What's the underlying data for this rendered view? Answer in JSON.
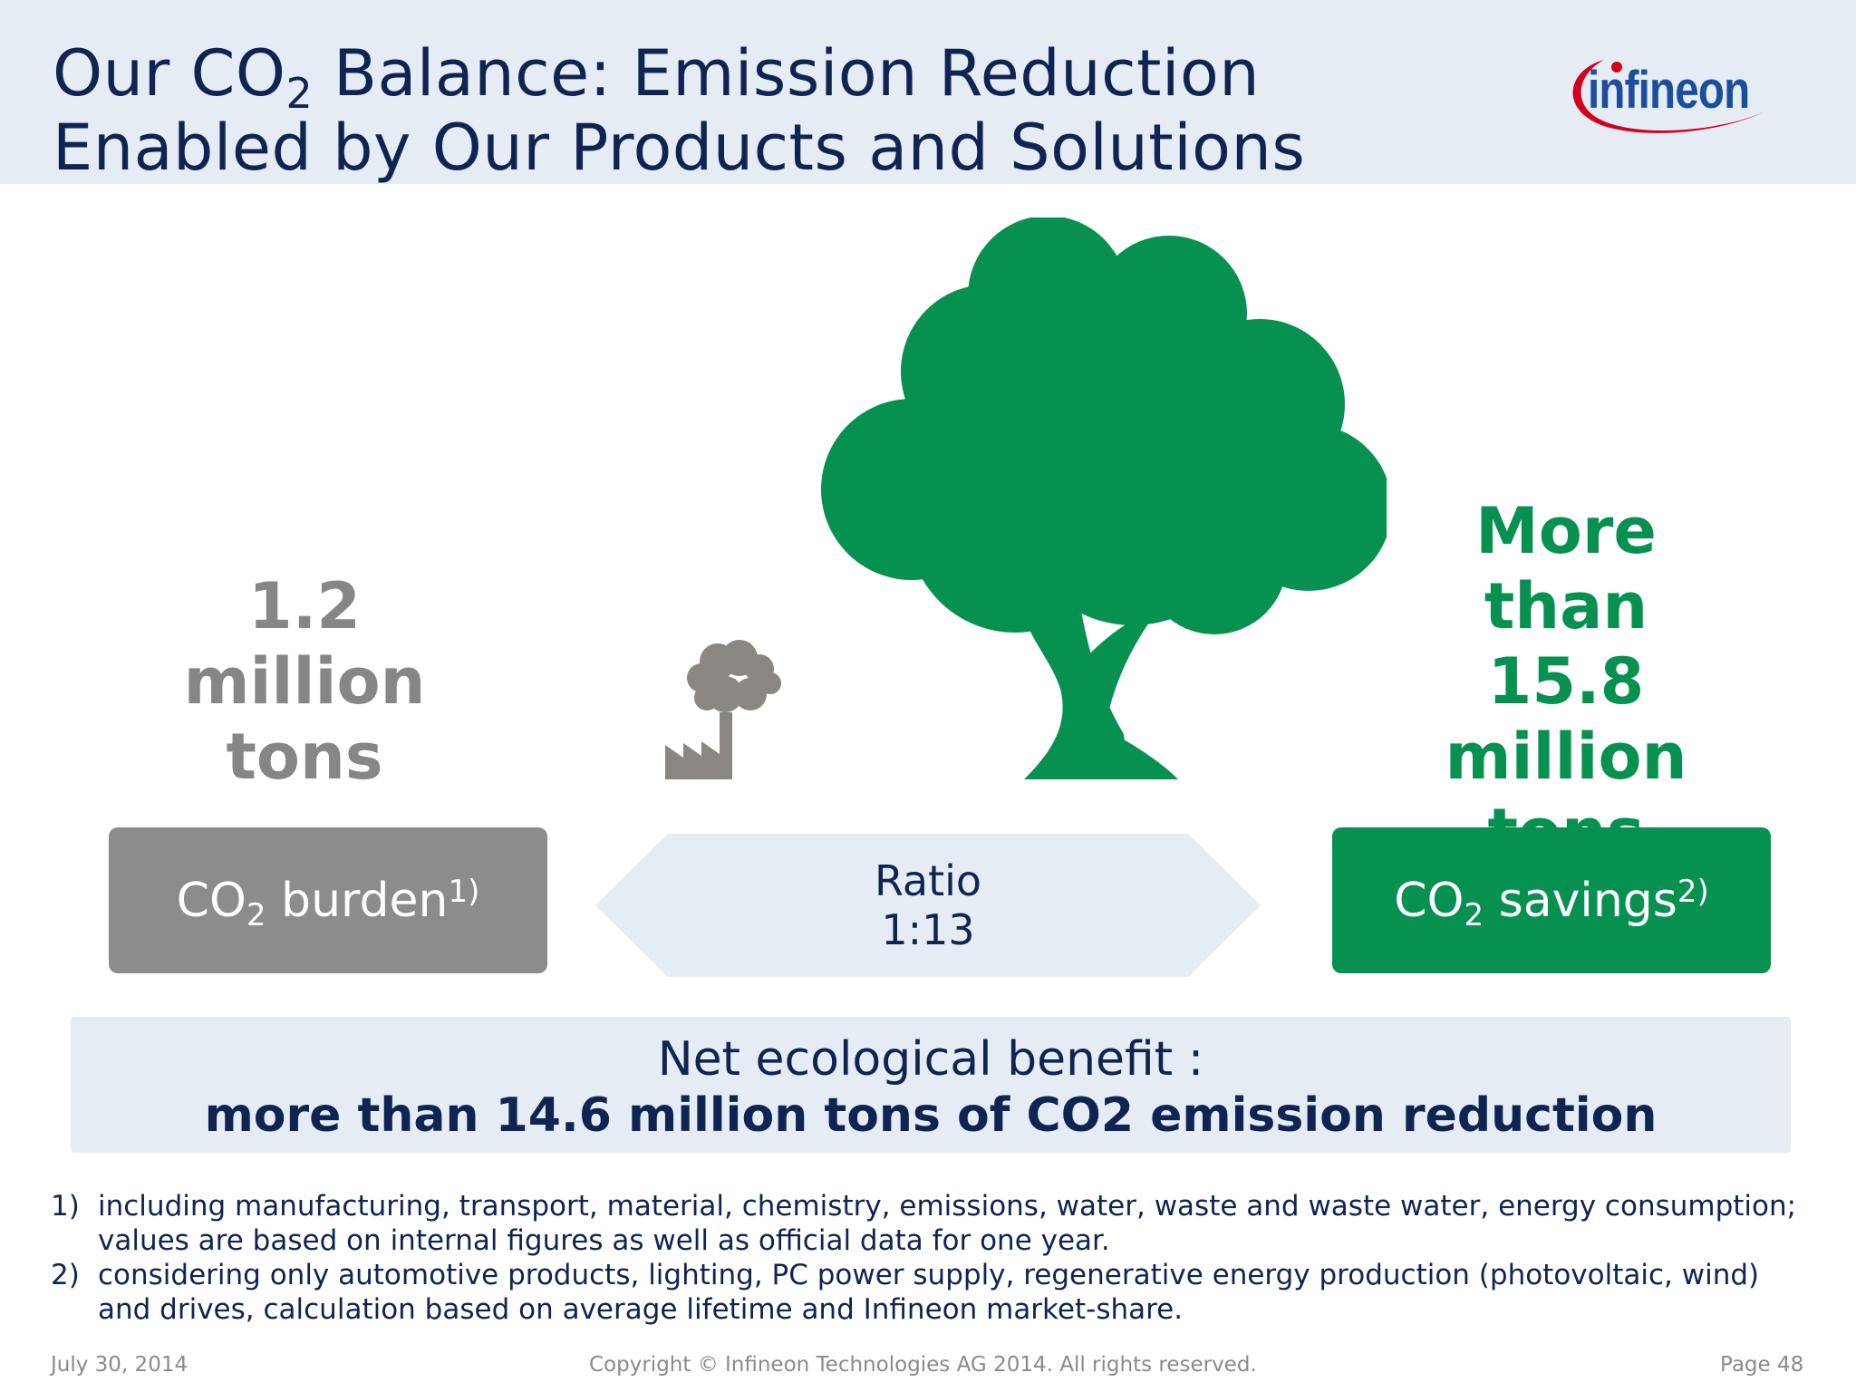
{
  "header": {
    "title_line1_pre": "Our CO",
    "title_line1_sub": "2",
    "title_line1_post": " Balance: Emission Reduction",
    "title_line2": "Enabled by Our Products and Solutions",
    "logo_text": "infineon"
  },
  "burden": {
    "amount_line1": "1.2",
    "amount_line2": "million",
    "amount_line3": "tons",
    "label_pre": "CO",
    "label_sub": "2",
    "label_post": " burden",
    "label_sup": "1)"
  },
  "ratio": {
    "line1": "Ratio",
    "line2": "1:13"
  },
  "savings": {
    "amount_line1": "More than",
    "amount_line2": "15.8",
    "amount_line3": "million",
    "amount_line4": "tons",
    "label_pre": "CO",
    "label_sub": "2",
    "label_post": " savings",
    "label_sup": "2)"
  },
  "benefit": {
    "label": "Net ecological benefit :",
    "value": "more than 14.6 million tons of CO2 emission reduction"
  },
  "footnotes": [
    {
      "marker": "1)",
      "text": "including manufacturing, transport, material, chemistry, emissions, water, waste and waste water, energy consumption; values are based on internal figures as well as official data for one year."
    },
    {
      "marker": "2)",
      "text": "considering only automotive products, lighting, PC power supply, regenerative energy production (photovoltaic, wind) and drives, calculation based on average lifetime and Infineon market-share."
    }
  ],
  "footer": {
    "date": "July 30, 2014",
    "copyright": "Copyright © Infineon Technologies AG 2014. All rights reserved.",
    "page": "Page 48"
  },
  "colors": {
    "navy": "#0e2452",
    "green": "#079150",
    "gray": "#8c8c8c",
    "light_blue": "#e6ecf3",
    "logo_red": "#d2001e",
    "logo_blue": "#1a4fa0"
  },
  "icons": {
    "tree": "tree-icon",
    "factory": "factory-icon"
  }
}
